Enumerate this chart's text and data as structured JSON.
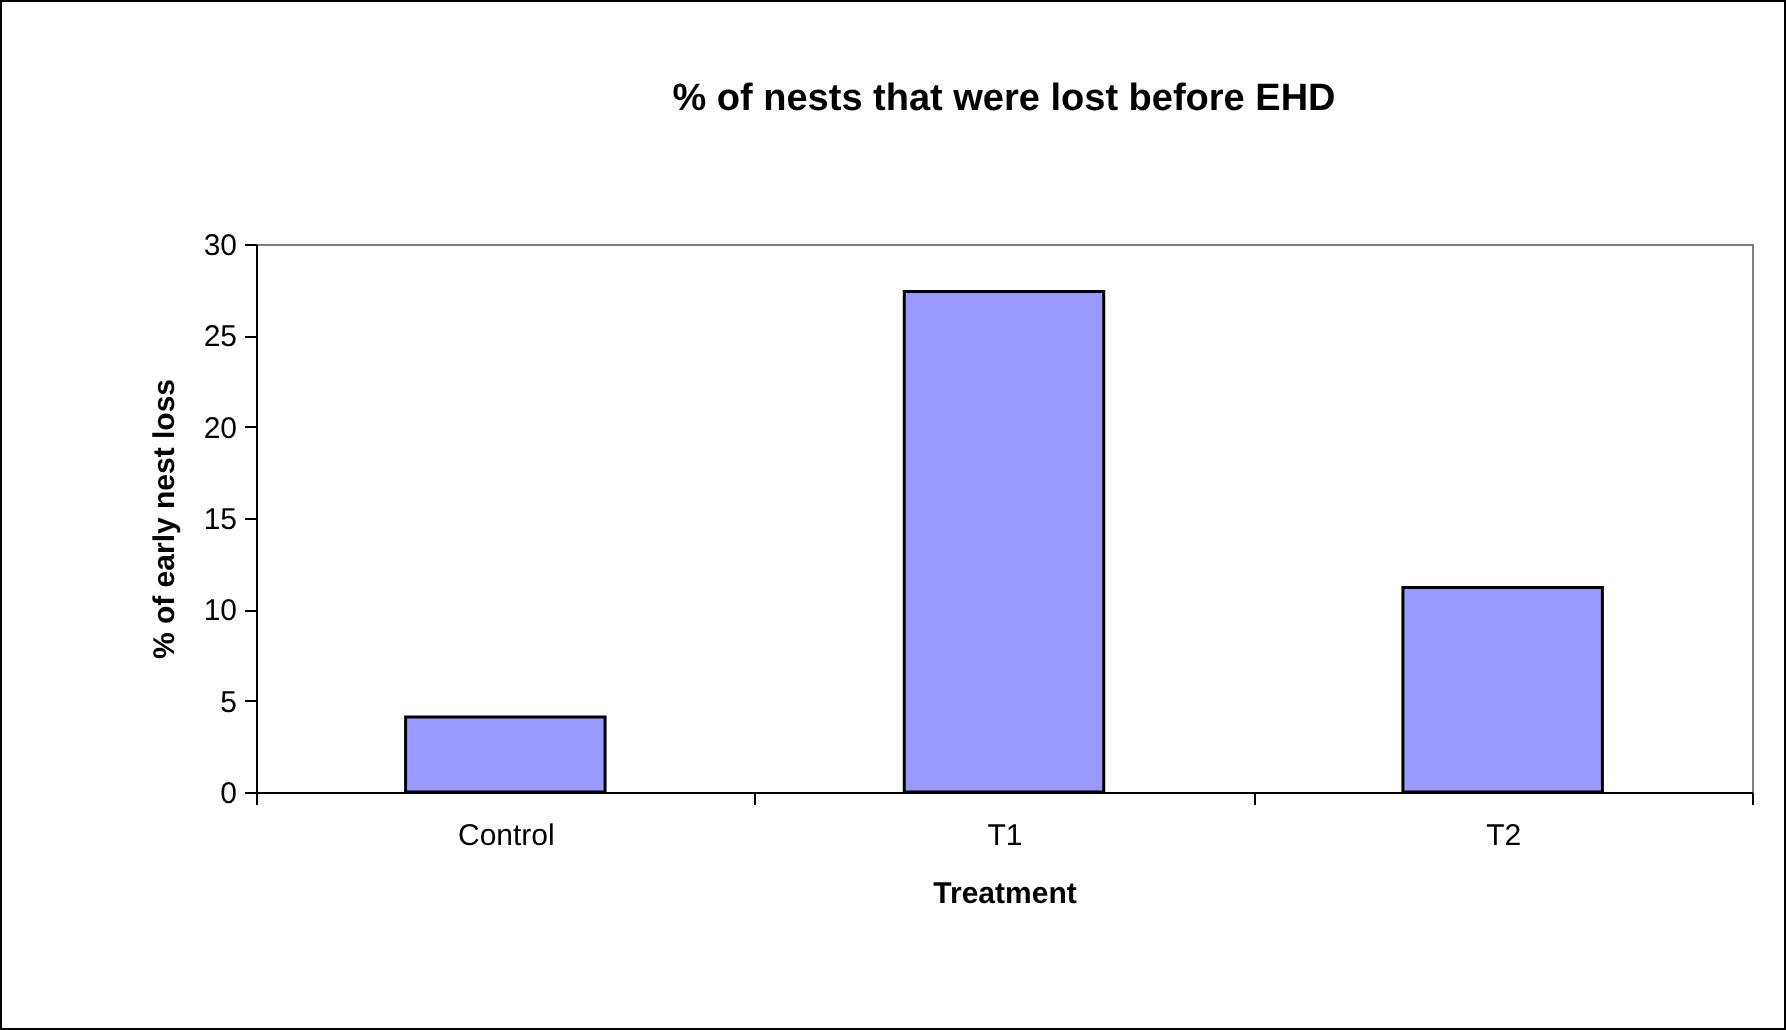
{
  "chart_data": {
    "type": "bar",
    "title": "% of nests that were lost before EHD",
    "xlabel": "Treatment",
    "ylabel": "% of early nest loss",
    "categories": [
      "Control",
      "T1",
      "T2"
    ],
    "values": [
      4.1,
      27.4,
      11.2
    ],
    "color": "#9999ff",
    "ylim": [
      0,
      30
    ],
    "yticks": [
      0,
      5,
      10,
      15,
      20,
      25,
      30
    ],
    "grid": false
  }
}
